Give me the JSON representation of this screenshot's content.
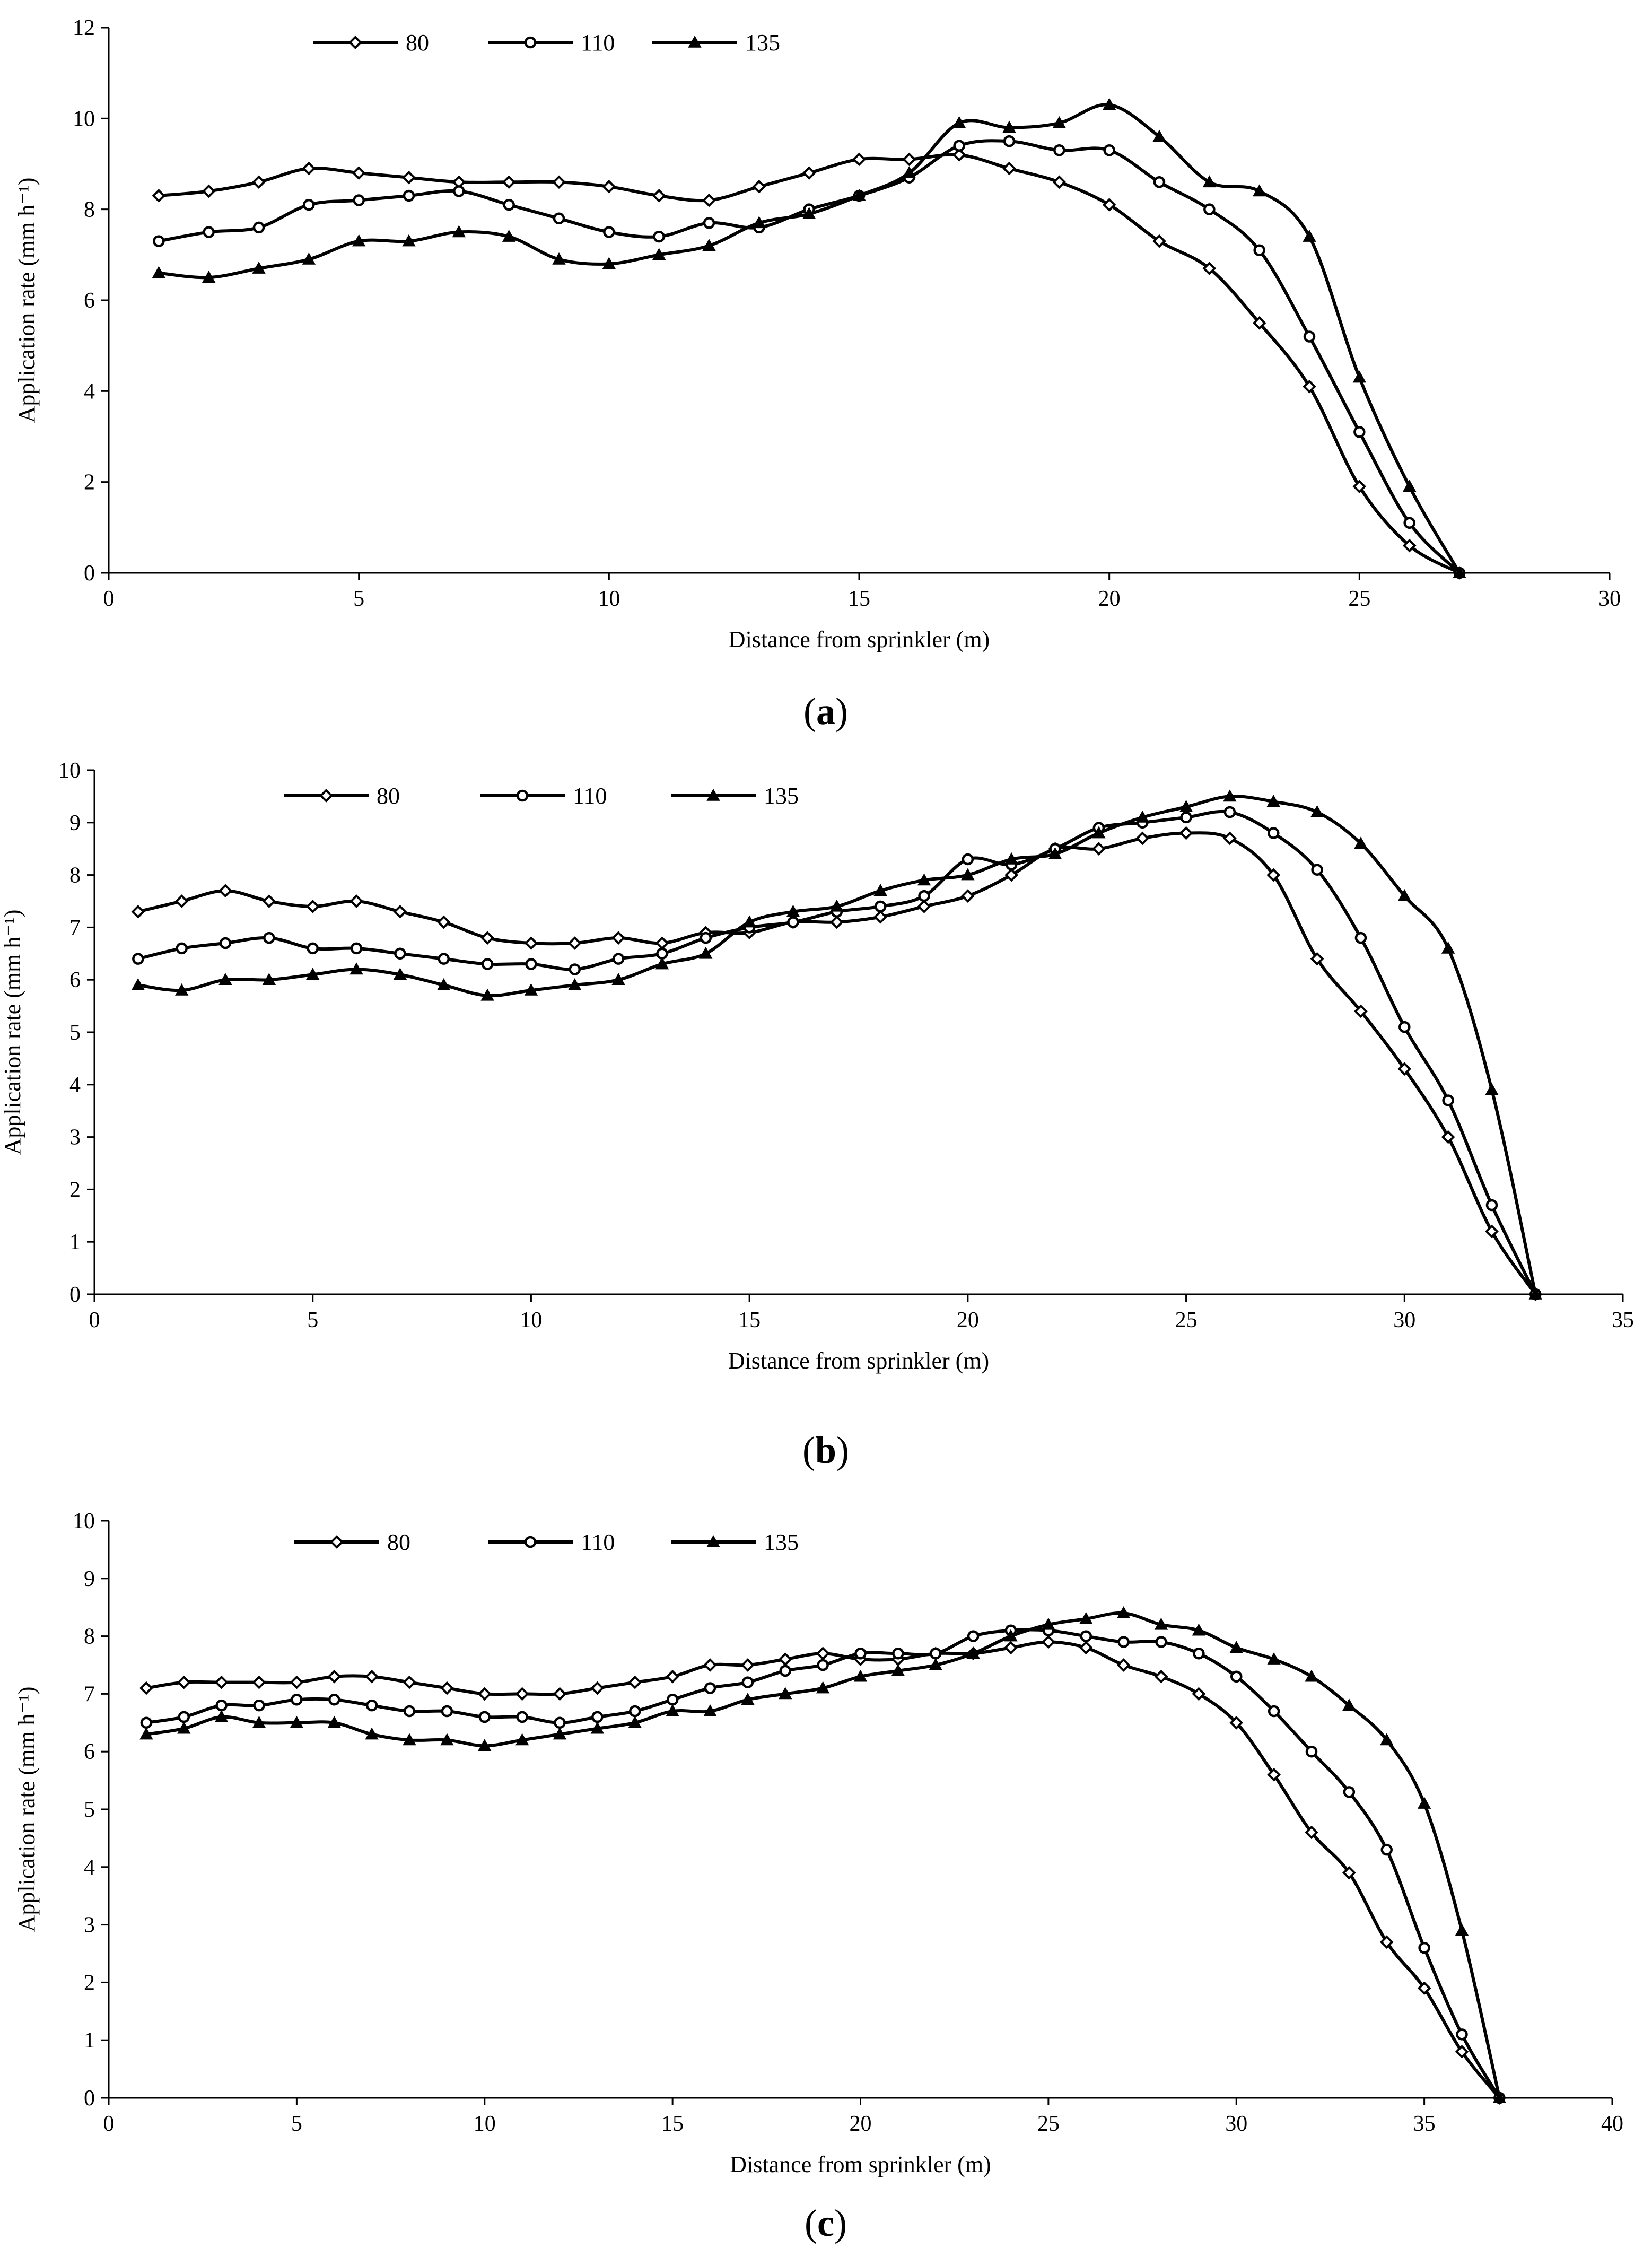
{
  "figure": {
    "panels": [
      {
        "caption_open": "(",
        "caption_letter": "a",
        "caption_close": ")"
      },
      {
        "caption_open": "(",
        "caption_letter": "b",
        "caption_close": ")"
      },
      {
        "caption_open": "(",
        "caption_letter": "c",
        "caption_close": ")"
      }
    ]
  },
  "colors": {
    "line": "#000000",
    "background": "#ffffff"
  },
  "chart_data": [
    {
      "type": "line",
      "title": "",
      "xlabel": "Distance from sprinkler (m)",
      "ylabel": "Application rate (mm h⁻¹)",
      "xlim": [
        0,
        30
      ],
      "ylim": [
        0,
        12
      ],
      "xticks": [
        0,
        5,
        10,
        15,
        20,
        25,
        30
      ],
      "yticks": [
        0,
        2,
        4,
        6,
        8,
        10,
        12
      ],
      "x": [
        1,
        2,
        3,
        4,
        5,
        6,
        7,
        8,
        9,
        10,
        11,
        12,
        13,
        14,
        15,
        16,
        17,
        18,
        19,
        20,
        21,
        22,
        23,
        24,
        25,
        26,
        27
      ],
      "series": [
        {
          "name": "80",
          "marker": "diamond",
          "values": [
            8.3,
            8.4,
            8.6,
            8.9,
            8.8,
            8.7,
            8.6,
            8.6,
            8.6,
            8.5,
            8.3,
            8.2,
            8.5,
            8.8,
            9.1,
            9.1,
            9.2,
            8.9,
            8.6,
            8.1,
            7.3,
            6.7,
            5.5,
            4.1,
            1.9,
            0.6,
            0
          ]
        },
        {
          "name": "110",
          "marker": "circle",
          "values": [
            7.3,
            7.5,
            7.6,
            8.1,
            8.2,
            8.3,
            8.4,
            8.1,
            7.8,
            7.5,
            7.4,
            7.7,
            7.6,
            8.0,
            8.3,
            8.7,
            9.4,
            9.5,
            9.3,
            9.3,
            8.6,
            8.0,
            7.1,
            5.2,
            3.1,
            1.1,
            0
          ]
        },
        {
          "name": "135",
          "marker": "triangle",
          "values": [
            6.6,
            6.5,
            6.7,
            6.9,
            7.3,
            7.3,
            7.5,
            7.4,
            6.9,
            6.8,
            7.0,
            7.2,
            7.7,
            7.9,
            8.3,
            8.8,
            9.9,
            9.8,
            9.9,
            10.3,
            9.6,
            8.6,
            8.4,
            7.4,
            4.3,
            1.9,
            0
          ]
        }
      ]
    },
    {
      "type": "line",
      "title": "",
      "xlabel": "Distance from sprinkler (m)",
      "ylabel": "Application rate (mm h⁻¹)",
      "xlim": [
        0,
        35
      ],
      "ylim": [
        0,
        10
      ],
      "xticks": [
        0,
        5,
        10,
        15,
        20,
        25,
        30,
        35
      ],
      "yticks": [
        0,
        1,
        2,
        3,
        4,
        5,
        6,
        7,
        8,
        9,
        10
      ],
      "x": [
        1,
        2,
        3,
        4,
        5,
        6,
        7,
        8,
        9,
        10,
        11,
        12,
        13,
        14,
        15,
        16,
        17,
        18,
        19,
        20,
        21,
        22,
        23,
        24,
        25,
        26,
        27,
        28,
        29,
        30,
        31,
        32,
        33
      ],
      "series": [
        {
          "name": "80",
          "marker": "diamond",
          "values": [
            7.3,
            7.5,
            7.7,
            7.5,
            7.4,
            7.5,
            7.3,
            7.1,
            6.8,
            6.7,
            6.7,
            6.8,
            6.7,
            6.9,
            6.9,
            7.1,
            7.1,
            7.2,
            7.4,
            7.6,
            8.0,
            8.5,
            8.5,
            8.7,
            8.8,
            8.7,
            8.0,
            6.4,
            5.4,
            4.3,
            3.0,
            1.2,
            0
          ]
        },
        {
          "name": "110",
          "marker": "circle",
          "values": [
            6.4,
            6.6,
            6.7,
            6.8,
            6.6,
            6.6,
            6.5,
            6.4,
            6.3,
            6.3,
            6.2,
            6.4,
            6.5,
            6.8,
            7.0,
            7.1,
            7.3,
            7.4,
            7.6,
            8.3,
            8.2,
            8.5,
            8.9,
            9.0,
            9.1,
            9.2,
            8.8,
            8.1,
            6.8,
            5.1,
            3.7,
            1.7,
            0
          ]
        },
        {
          "name": "135",
          "marker": "triangle",
          "values": [
            5.9,
            5.8,
            6.0,
            6.0,
            6.1,
            6.2,
            6.1,
            5.9,
            5.7,
            5.8,
            5.9,
            6.0,
            6.3,
            6.5,
            7.1,
            7.3,
            7.4,
            7.7,
            7.9,
            8.0,
            8.3,
            8.4,
            8.8,
            9.1,
            9.3,
            9.5,
            9.4,
            9.2,
            8.6,
            7.6,
            6.6,
            3.9,
            0
          ]
        }
      ]
    },
    {
      "type": "line",
      "title": "",
      "xlabel": "Distance from sprinkler (m)",
      "ylabel": "Application rate (mm h⁻¹)",
      "xlim": [
        0,
        40
      ],
      "ylim": [
        0,
        10
      ],
      "xticks": [
        0,
        5,
        10,
        15,
        20,
        25,
        30,
        35,
        40
      ],
      "yticks": [
        0,
        1,
        2,
        3,
        4,
        5,
        6,
        7,
        8,
        9,
        10
      ],
      "x": [
        1,
        2,
        3,
        4,
        5,
        6,
        7,
        8,
        9,
        10,
        11,
        12,
        13,
        14,
        15,
        16,
        17,
        18,
        19,
        20,
        21,
        22,
        23,
        24,
        25,
        26,
        27,
        28,
        29,
        30,
        31,
        32,
        33,
        34,
        35,
        36,
        37
      ],
      "series": [
        {
          "name": "80",
          "marker": "diamond",
          "values": [
            7.1,
            7.2,
            7.2,
            7.2,
            7.2,
            7.3,
            7.3,
            7.2,
            7.1,
            7.0,
            7.0,
            7.0,
            7.1,
            7.2,
            7.3,
            7.5,
            7.5,
            7.6,
            7.7,
            7.6,
            7.6,
            7.7,
            7.7,
            7.8,
            7.9,
            7.8,
            7.5,
            7.3,
            7.0,
            6.5,
            5.6,
            4.6,
            3.9,
            2.7,
            1.9,
            0.8,
            0
          ]
        },
        {
          "name": "110",
          "marker": "circle",
          "values": [
            6.5,
            6.6,
            6.8,
            6.8,
            6.9,
            6.9,
            6.8,
            6.7,
            6.7,
            6.6,
            6.6,
            6.5,
            6.6,
            6.7,
            6.9,
            7.1,
            7.2,
            7.4,
            7.5,
            7.7,
            7.7,
            7.7,
            8.0,
            8.1,
            8.1,
            8.0,
            7.9,
            7.9,
            7.7,
            7.3,
            6.7,
            6.0,
            5.3,
            4.3,
            2.6,
            1.1,
            0
          ]
        },
        {
          "name": "135",
          "marker": "triangle",
          "values": [
            6.3,
            6.4,
            6.6,
            6.5,
            6.5,
            6.5,
            6.3,
            6.2,
            6.2,
            6.1,
            6.2,
            6.3,
            6.4,
            6.5,
            6.7,
            6.7,
            6.9,
            7.0,
            7.1,
            7.3,
            7.4,
            7.5,
            7.7,
            8.0,
            8.2,
            8.3,
            8.4,
            8.2,
            8.1,
            7.8,
            7.6,
            7.3,
            6.8,
            6.2,
            5.1,
            2.9,
            0
          ]
        }
      ]
    }
  ]
}
